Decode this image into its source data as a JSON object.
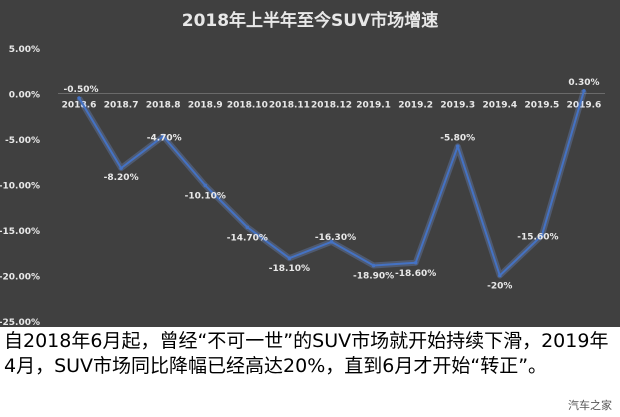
{
  "chart_data": {
    "type": "line",
    "title": "2018年上半年至今SUV市场增速",
    "categories": [
      "2018.6",
      "2018.7",
      "2018.8",
      "2018.9",
      "2018.10",
      "2018.11",
      "2018.12",
      "2019.1",
      "2019.2",
      "2019.3",
      "2019.4",
      "2019.5",
      "2019.6"
    ],
    "values": [
      -0.5,
      -8.2,
      -4.7,
      -10.1,
      -14.7,
      -18.1,
      -16.3,
      -18.9,
      -18.6,
      -5.8,
      -20,
      -15.6,
      0.3
    ],
    "data_labels": [
      "-0.50%",
      "-8.20%",
      "-4.70%",
      "-10.10%",
      "-14.70%",
      "-18.10%",
      "-16.30%",
      "-18.90%",
      "-18.60%",
      "-5.80%",
      "-20%",
      "-15.60%",
      "0.30%"
    ],
    "ylim": [
      -25,
      5
    ],
    "yticks": [
      5,
      0,
      -5,
      -10,
      -15,
      -20,
      -25
    ],
    "ytick_labels": [
      "5.00%",
      "0.00%",
      "-5.00%",
      "-10.00%",
      "-15.00%",
      "-20.00%",
      "-25.00%"
    ],
    "grid": false,
    "line_color": "#4472c4",
    "xlabel": "",
    "ylabel": ""
  },
  "caption": "自2018年6月起，曾经“不可一世”的SUV市场就开始持续下滑，2019年4月，SUV市场同比降幅已经高达20%，直到6月才开始“转正”。",
  "watermark": "汽车之家",
  "colors": {
    "panel_background": "#404040",
    "text": "#e8e8e8"
  }
}
